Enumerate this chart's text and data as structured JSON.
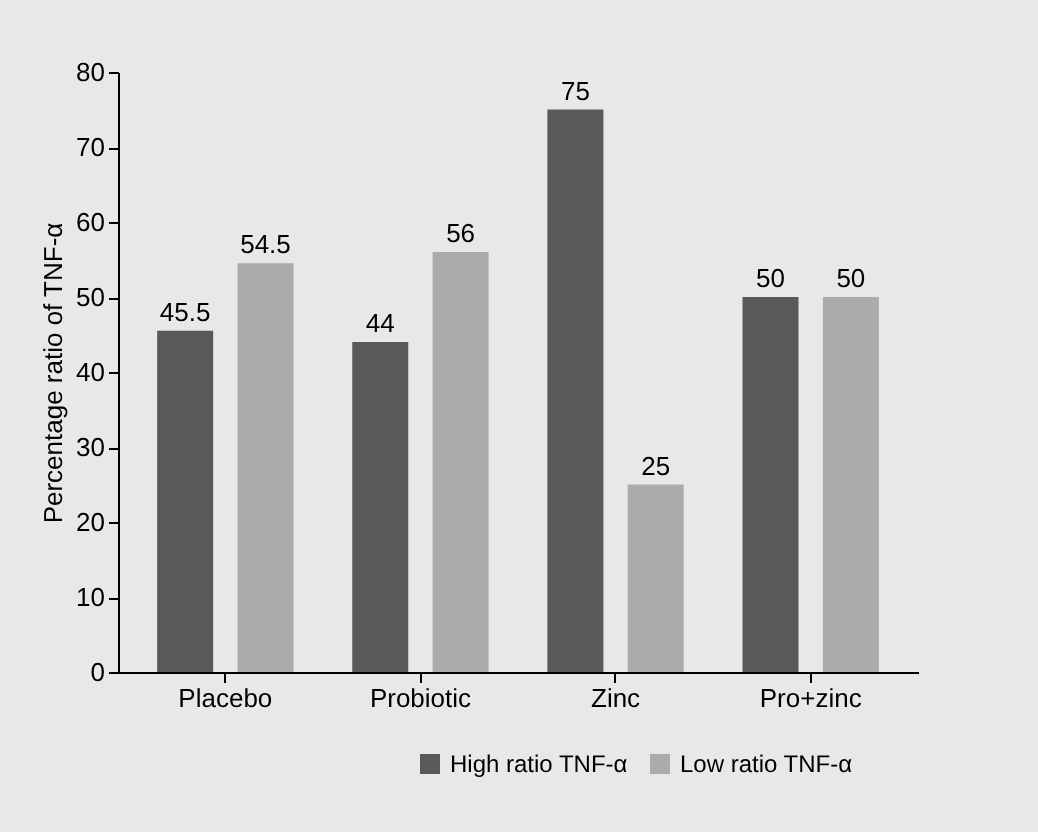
{
  "chart_data": {
    "type": "bar",
    "ylabel": "Percentage ratio of TNF-α",
    "categories": [
      "Placebo",
      "Probiotic",
      "Zinc",
      "Pro+zinc"
    ],
    "series": [
      {
        "name": "High ratio TNF-α",
        "color": "#595959",
        "values": [
          45.5,
          44,
          75,
          50
        ]
      },
      {
        "name": "Low ratio TNF-α",
        "color": "#ababab",
        "values": [
          54.5,
          56,
          25,
          50
        ]
      }
    ],
    "ylim": [
      0,
      80
    ],
    "yticks": [
      0,
      10,
      20,
      30,
      40,
      50,
      60,
      70,
      80
    ],
    "data_labels": true,
    "grid": false,
    "legend": "bottom right"
  }
}
